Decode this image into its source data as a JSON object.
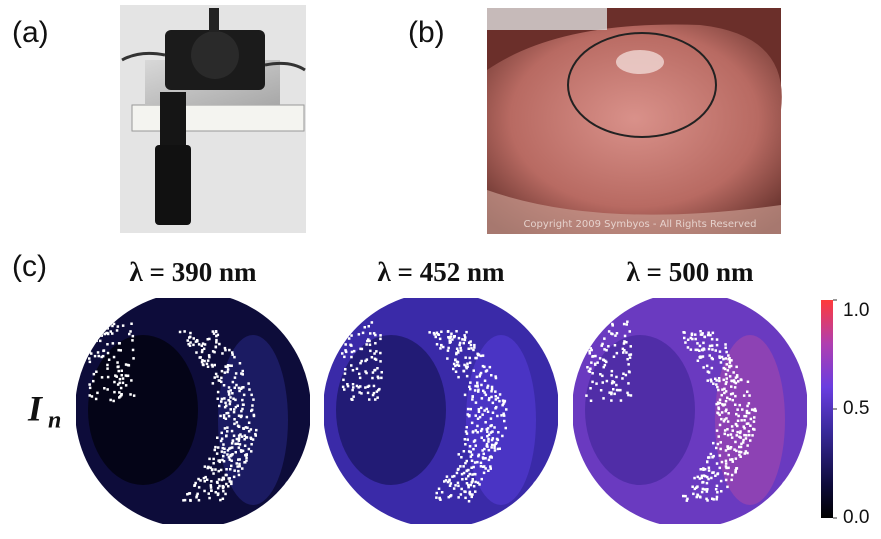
{
  "panels": {
    "a": {
      "label": "(a)"
    },
    "b": {
      "label": "(b)",
      "watermark": "Copyright 2009 Symbyos - All Rights Reserved"
    },
    "c": {
      "label": "(c)",
      "axis_label": {
        "main": "I",
        "subscript": "n"
      },
      "maps": [
        {
          "title": "λ = 390 nm"
        },
        {
          "title": "λ = 452 nm"
        },
        {
          "title": "λ = 500 nm"
        }
      ],
      "colorbar": {
        "lim": [
          0,
          1
        ],
        "ticks": [
          {
            "value": 1,
            "label": "1.0"
          },
          {
            "value": 0.5,
            "label": "0.5"
          },
          {
            "value": 0,
            "label": "0.0"
          }
        ]
      }
    }
  }
}
